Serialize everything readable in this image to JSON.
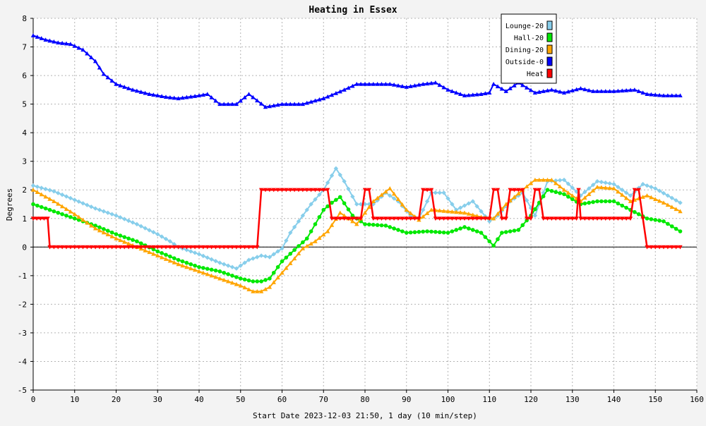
{
  "chart_data": {
    "type": "line",
    "title": "Heating in Essex",
    "xlabel": "Start Date 2023-12-03 21:50, 1 day (10 min/step)",
    "ylabel": "Degrees",
    "xlim": [
      0,
      160
    ],
    "ylim": [
      -5,
      8
    ],
    "x_ticks": [
      0,
      10,
      20,
      30,
      40,
      50,
      60,
      70,
      80,
      90,
      100,
      110,
      120,
      130,
      140,
      150,
      160
    ],
    "y_ticks": [
      -5,
      -4,
      -3,
      -2,
      -1,
      0,
      1,
      2,
      3,
      4,
      5,
      6,
      7,
      8
    ],
    "grid": true,
    "legend_position": "top-right",
    "series": [
      {
        "name": "Lounge-20",
        "color": "#87ceeb",
        "marker": "diamond",
        "points": [
          [
            0,
            2.15
          ],
          [
            5,
            1.95
          ],
          [
            10,
            1.65
          ],
          [
            15,
            1.35
          ],
          [
            20,
            1.1
          ],
          [
            25,
            0.8
          ],
          [
            30,
            0.45
          ],
          [
            33,
            0.2
          ],
          [
            35,
            0.0
          ],
          [
            40,
            -0.25
          ],
          [
            45,
            -0.55
          ],
          [
            49,
            -0.75
          ],
          [
            52,
            -0.45
          ],
          [
            55,
            -0.3
          ],
          [
            57,
            -0.35
          ],
          [
            60,
            -0.05
          ],
          [
            62,
            0.5
          ],
          [
            65,
            1.1
          ],
          [
            67,
            1.5
          ],
          [
            70,
            2.0
          ],
          [
            73,
            2.75
          ],
          [
            75,
            2.3
          ],
          [
            78,
            1.5
          ],
          [
            82,
            1.5
          ],
          [
            85,
            1.9
          ],
          [
            88,
            1.6
          ],
          [
            91,
            1.1
          ],
          [
            93,
            1.0
          ],
          [
            96,
            1.9
          ],
          [
            99,
            1.9
          ],
          [
            102,
            1.3
          ],
          [
            106,
            1.6
          ],
          [
            110,
            0.9
          ],
          [
            112,
            1.1
          ],
          [
            115,
            1.6
          ],
          [
            118,
            1.9
          ],
          [
            121,
            1.1
          ],
          [
            124,
            2.3
          ],
          [
            128,
            2.35
          ],
          [
            132,
            1.8
          ],
          [
            136,
            2.3
          ],
          [
            140,
            2.2
          ],
          [
            144,
            1.8
          ],
          [
            147,
            2.2
          ],
          [
            150,
            2.05
          ],
          [
            153,
            1.8
          ],
          [
            156,
            1.55
          ]
        ]
      },
      {
        "name": "Hall-20",
        "color": "#00e800",
        "marker": "circle",
        "points": [
          [
            0,
            1.5
          ],
          [
            5,
            1.25
          ],
          [
            10,
            1.0
          ],
          [
            15,
            0.75
          ],
          [
            20,
            0.45
          ],
          [
            25,
            0.2
          ],
          [
            30,
            -0.15
          ],
          [
            35,
            -0.45
          ],
          [
            40,
            -0.7
          ],
          [
            45,
            -0.85
          ],
          [
            50,
            -1.1
          ],
          [
            53,
            -1.2
          ],
          [
            55,
            -1.2
          ],
          [
            57,
            -1.1
          ],
          [
            60,
            -0.5
          ],
          [
            63,
            -0.1
          ],
          [
            66,
            0.3
          ],
          [
            68,
            0.8
          ],
          [
            70,
            1.3
          ],
          [
            72,
            1.55
          ],
          [
            74,
            1.75
          ],
          [
            77,
            1.1
          ],
          [
            80,
            0.8
          ],
          [
            85,
            0.75
          ],
          [
            90,
            0.5
          ],
          [
            95,
            0.55
          ],
          [
            100,
            0.5
          ],
          [
            104,
            0.7
          ],
          [
            108,
            0.5
          ],
          [
            111,
            0.05
          ],
          [
            113,
            0.5
          ],
          [
            117,
            0.6
          ],
          [
            120,
            1.1
          ],
          [
            124,
            2.0
          ],
          [
            128,
            1.85
          ],
          [
            132,
            1.5
          ],
          [
            136,
            1.6
          ],
          [
            140,
            1.6
          ],
          [
            144,
            1.3
          ],
          [
            148,
            1.0
          ],
          [
            152,
            0.9
          ],
          [
            156,
            0.55
          ]
        ]
      },
      {
        "name": "Dining-20",
        "color": "#ffa500",
        "marker": "triangle",
        "points": [
          [
            0,
            2.0
          ],
          [
            5,
            1.6
          ],
          [
            10,
            1.15
          ],
          [
            15,
            0.65
          ],
          [
            20,
            0.3
          ],
          [
            25,
            0.0
          ],
          [
            30,
            -0.3
          ],
          [
            35,
            -0.6
          ],
          [
            40,
            -0.85
          ],
          [
            45,
            -1.1
          ],
          [
            50,
            -1.35
          ],
          [
            53,
            -1.55
          ],
          [
            55,
            -1.55
          ],
          [
            57,
            -1.4
          ],
          [
            60,
            -0.9
          ],
          [
            63,
            -0.4
          ],
          [
            65,
            -0.05
          ],
          [
            68,
            0.2
          ],
          [
            71,
            0.55
          ],
          [
            74,
            1.2
          ],
          [
            78,
            0.8
          ],
          [
            82,
            1.6
          ],
          [
            86,
            2.05
          ],
          [
            90,
            1.3
          ],
          [
            93,
            0.95
          ],
          [
            96,
            1.3
          ],
          [
            100,
            1.25
          ],
          [
            104,
            1.2
          ],
          [
            108,
            1.05
          ],
          [
            111,
            1.0
          ],
          [
            114,
            1.5
          ],
          [
            118,
            2.0
          ],
          [
            121,
            2.35
          ],
          [
            125,
            2.35
          ],
          [
            128,
            2.0
          ],
          [
            132,
            1.6
          ],
          [
            136,
            2.1
          ],
          [
            140,
            2.05
          ],
          [
            144,
            1.6
          ],
          [
            148,
            1.8
          ],
          [
            152,
            1.55
          ],
          [
            156,
            1.25
          ]
        ]
      },
      {
        "name": "Outside-0",
        "color": "#0000ff",
        "marker": "triangle",
        "points": [
          [
            0,
            7.4
          ],
          [
            3,
            7.25
          ],
          [
            6,
            7.15
          ],
          [
            9,
            7.1
          ],
          [
            12,
            6.9
          ],
          [
            15,
            6.5
          ],
          [
            17,
            6.05
          ],
          [
            20,
            5.7
          ],
          [
            24,
            5.5
          ],
          [
            28,
            5.35
          ],
          [
            32,
            5.25
          ],
          [
            35,
            5.2
          ],
          [
            40,
            5.3
          ],
          [
            42,
            5.35
          ],
          [
            45,
            5.0
          ],
          [
            49,
            5.0
          ],
          [
            52,
            5.35
          ],
          [
            56,
            4.9
          ],
          [
            60,
            5.0
          ],
          [
            65,
            5.0
          ],
          [
            70,
            5.2
          ],
          [
            75,
            5.5
          ],
          [
            78,
            5.7
          ],
          [
            82,
            5.7
          ],
          [
            86,
            5.7
          ],
          [
            90,
            5.6
          ],
          [
            94,
            5.7
          ],
          [
            97,
            5.75
          ],
          [
            100,
            5.5
          ],
          [
            104,
            5.3
          ],
          [
            108,
            5.35
          ],
          [
            110,
            5.4
          ],
          [
            111,
            5.7
          ],
          [
            114,
            5.45
          ],
          [
            117,
            5.75
          ],
          [
            121,
            5.4
          ],
          [
            125,
            5.5
          ],
          [
            128,
            5.4
          ],
          [
            132,
            5.55
          ],
          [
            135,
            5.45
          ],
          [
            140,
            5.45
          ],
          [
            145,
            5.5
          ],
          [
            148,
            5.35
          ],
          [
            152,
            5.3
          ],
          [
            156,
            5.3
          ]
        ]
      },
      {
        "name": "Heat",
        "color": "#ff0000",
        "marker": "triangle-down",
        "points": [
          [
            0,
            1
          ],
          [
            3.5,
            1
          ],
          [
            4,
            0
          ],
          [
            54,
            0
          ],
          [
            55,
            2
          ],
          [
            71,
            2
          ],
          [
            72,
            1
          ],
          [
            79,
            1
          ],
          [
            80,
            2
          ],
          [
            81,
            2
          ],
          [
            82,
            1
          ],
          [
            93,
            1
          ],
          [
            94,
            2
          ],
          [
            96,
            2
          ],
          [
            97,
            1
          ],
          [
            110,
            1
          ],
          [
            111,
            2
          ],
          [
            112,
            2
          ],
          [
            113,
            1
          ],
          [
            114,
            1
          ],
          [
            115,
            2
          ],
          [
            118,
            2
          ],
          [
            119,
            1
          ],
          [
            120,
            1
          ],
          [
            121,
            2
          ],
          [
            122,
            2
          ],
          [
            123,
            1
          ],
          [
            131,
            1
          ],
          [
            131.5,
            2
          ],
          [
            132,
            1
          ],
          [
            144,
            1
          ],
          [
            145,
            2
          ],
          [
            146,
            2
          ],
          [
            147,
            1
          ],
          [
            148,
            0
          ],
          [
            156,
            0
          ]
        ]
      }
    ]
  }
}
